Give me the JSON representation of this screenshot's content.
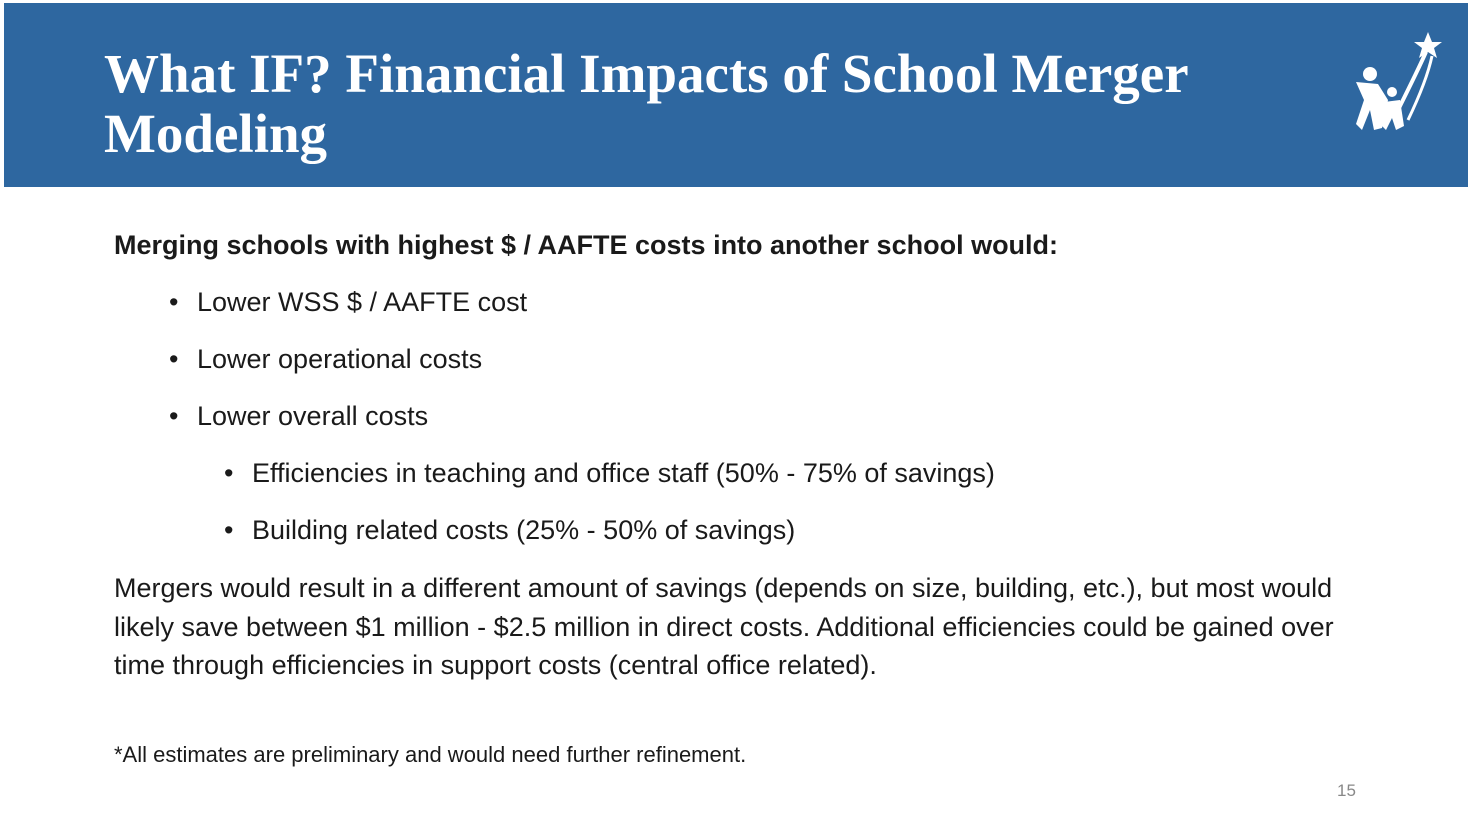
{
  "header": {
    "title": "What IF? Financial Impacts of School Merger Modeling"
  },
  "body": {
    "lead": "Merging schools with highest $ / AAFTE costs into another school would:",
    "bullets": [
      "Lower WSS $ / AAFTE cost",
      "Lower operational costs",
      "Lower overall costs"
    ],
    "sub_bullets": [
      "Efficiencies in teaching and office staff (50% - 75% of savings)",
      "Building related costs (25% - 50% of savings)"
    ],
    "paragraph": "Mergers would result in a different amount of savings (depends on size, building, etc.), but most would likely save between $1 million - $2.5 million in direct costs. Additional efficiencies could be gained over time through efficiencies in support costs (central office related).",
    "footnote": "*All estimates are preliminary and would need further refinement."
  },
  "footer": {
    "page_number": "15"
  }
}
